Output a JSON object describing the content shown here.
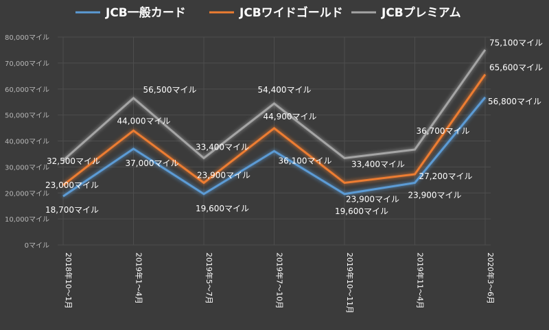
{
  "chart_data": {
    "type": "line",
    "categories": [
      "2018年10～1月",
      "2019年1～4月",
      "2019年5～7月",
      "2019年7～10月",
      "2019年10～11月",
      "2019年11～4月",
      "2020年3～6月"
    ],
    "series": [
      {
        "name": "JCB一般カード",
        "color": "#5b9bd5",
        "values": [
          18700,
          37000,
          19600,
          36100,
          19600,
          23900,
          56800
        ],
        "labels": [
          "18,700マイル",
          "37,000マイル",
          "19,600マイル",
          "36,100マイル",
          "19,600マイル",
          "23,900マイル",
          "56,800マイル"
        ]
      },
      {
        "name": "JCBワイドゴールド",
        "color": "#ed7d31",
        "values": [
          23000,
          44000,
          23900,
          44900,
          23900,
          27200,
          65600
        ],
        "labels": [
          "23,000マイル",
          "44,000マイル",
          "23,900マイル",
          "44,900マイル",
          "23,900マイル",
          "27,200マイル",
          "65,600マイル"
        ]
      },
      {
        "name": "JCBプレミアム",
        "color": "#a5a5a5",
        "values": [
          32500,
          56500,
          33400,
          54400,
          33400,
          36700,
          75100
        ],
        "labels": [
          "32,500マイル",
          "56,500マイル",
          "33,400マイル",
          "54,400マイル",
          "33,400マイル",
          "36,700マイル",
          "75,100マイル"
        ]
      }
    ],
    "yticks": [
      "0マイル",
      "10,000マイル",
      "20,000マイル",
      "30,000マイル",
      "40,000マイル",
      "50,000マイル",
      "60,000マイル",
      "70,000マイル",
      "80,000マイル"
    ],
    "ylim": [
      0,
      80000
    ],
    "legend_position": "top",
    "grid": true
  }
}
